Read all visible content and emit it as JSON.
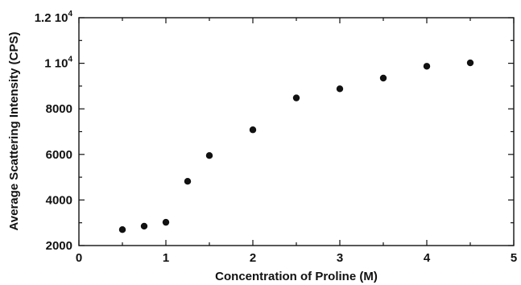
{
  "chart_data": {
    "type": "scatter",
    "xlabel": "Concentration of Proline (M)",
    "ylabel": "Average Scattering Intensity (CPS)",
    "xlim": [
      0,
      5
    ],
    "ylim": [
      2000,
      12000
    ],
    "x_ticks": [
      0,
      1,
      2,
      3,
      4,
      5
    ],
    "y_ticks": [
      2000,
      4000,
      6000,
      8000,
      10000,
      12000
    ],
    "y_tick_labels": [
      "2000",
      "4000",
      "6000",
      "8000",
      "1 10",
      "1.2 10"
    ],
    "y_tick_exponents": [
      "",
      "",
      "",
      "",
      "4",
      "4"
    ],
    "grid": false,
    "marker_color": "#111111",
    "points": [
      {
        "x": 0.5,
        "y": 2700
      },
      {
        "x": 0.75,
        "y": 2850
      },
      {
        "x": 1.0,
        "y": 3020
      },
      {
        "x": 1.25,
        "y": 4820
      },
      {
        "x": 1.5,
        "y": 5950
      },
      {
        "x": 2.0,
        "y": 7080
      },
      {
        "x": 2.5,
        "y": 8480
      },
      {
        "x": 3.0,
        "y": 8880
      },
      {
        "x": 3.5,
        "y": 9350
      },
      {
        "x": 4.0,
        "y": 9870
      },
      {
        "x": 4.5,
        "y": 10020
      }
    ]
  }
}
